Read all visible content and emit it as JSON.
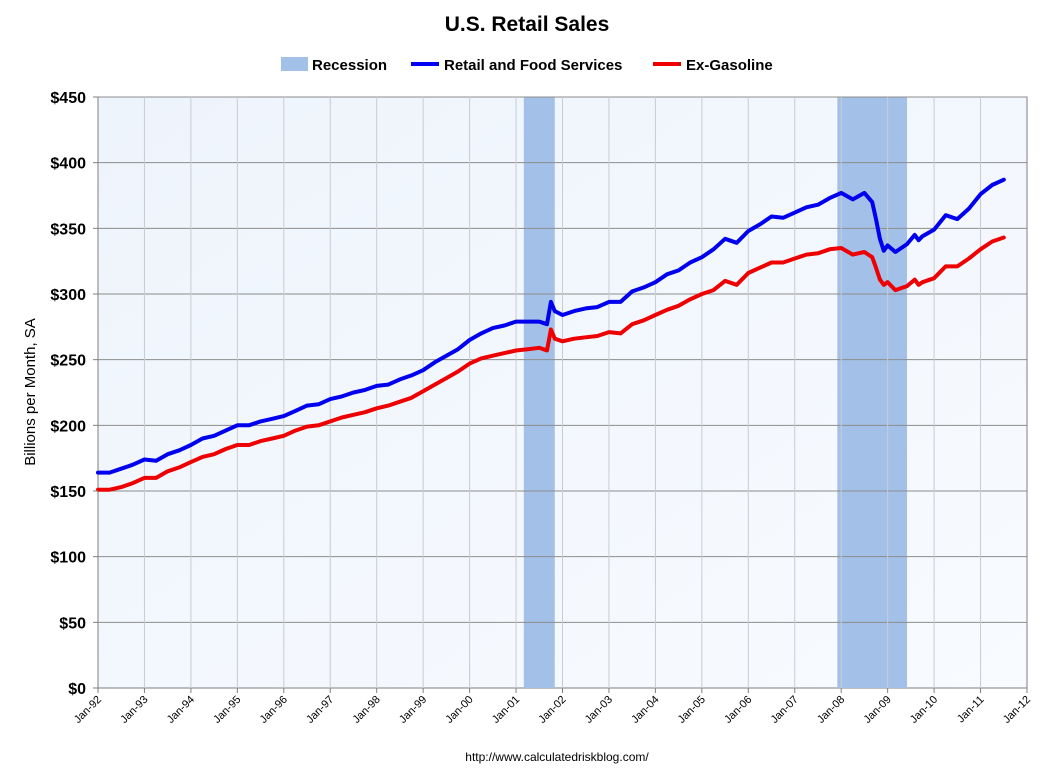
{
  "chart_data": {
    "type": "line",
    "title": "U.S. Retail Sales",
    "ylabel": "Billions per Month, SA",
    "source": "http://www.calculatedriskblog.com/",
    "ylim": [
      0,
      450
    ],
    "yticks": [
      0,
      50,
      100,
      150,
      200,
      250,
      300,
      350,
      400,
      450
    ],
    "ytick_labels": [
      "$0",
      "$50",
      "$100",
      "$150",
      "$200",
      "$250",
      "$300",
      "$350",
      "$400",
      "$450"
    ],
    "xlim": [
      1992,
      2012
    ],
    "xticks": [
      "Jan-92",
      "Jan-93",
      "Jan-94",
      "Jan-95",
      "Jan-96",
      "Jan-97",
      "Jan-98",
      "Jan-99",
      "Jan-00",
      "Jan-01",
      "Jan-02",
      "Jan-03",
      "Jan-04",
      "Jan-05",
      "Jan-06",
      "Jan-07",
      "Jan-08",
      "Jan-09",
      "Jan-10",
      "Jan-11",
      "Jan-12"
    ],
    "grid": true,
    "legend_position": "top",
    "recessions": [
      {
        "start": "Mar-01",
        "end": "Nov-01"
      },
      {
        "start": "Dec-07",
        "end": "Jun-09"
      }
    ],
    "recession_label": "Recession",
    "recession_color": "#a3c1e8",
    "series": [
      {
        "name": "Retail and Food Services",
        "color": "#0000ee",
        "points": [
          [
            "Jan-92",
            164
          ],
          [
            "Apr-92",
            164
          ],
          [
            "Jul-92",
            167
          ],
          [
            "Oct-92",
            170
          ],
          [
            "Jan-93",
            174
          ],
          [
            "Apr-93",
            173
          ],
          [
            "Jul-93",
            178
          ],
          [
            "Oct-93",
            181
          ],
          [
            "Jan-94",
            185
          ],
          [
            "Apr-94",
            190
          ],
          [
            "Jul-94",
            192
          ],
          [
            "Oct-94",
            196
          ],
          [
            "Jan-95",
            200
          ],
          [
            "Apr-95",
            200
          ],
          [
            "Jul-95",
            203
          ],
          [
            "Oct-95",
            205
          ],
          [
            "Jan-96",
            207
          ],
          [
            "Apr-96",
            211
          ],
          [
            "Jul-96",
            215
          ],
          [
            "Oct-96",
            216
          ],
          [
            "Jan-97",
            220
          ],
          [
            "Apr-97",
            222
          ],
          [
            "Jul-97",
            225
          ],
          [
            "Oct-97",
            227
          ],
          [
            "Jan-98",
            230
          ],
          [
            "Apr-98",
            231
          ],
          [
            "Jul-98",
            235
          ],
          [
            "Oct-98",
            238
          ],
          [
            "Jan-99",
            242
          ],
          [
            "Apr-99",
            248
          ],
          [
            "Jul-99",
            253
          ],
          [
            "Oct-99",
            258
          ],
          [
            "Jan-00",
            265
          ],
          [
            "Apr-00",
            270
          ],
          [
            "Jul-00",
            274
          ],
          [
            "Oct-00",
            276
          ],
          [
            "Jan-01",
            279
          ],
          [
            "Apr-01",
            279
          ],
          [
            "Jul-01",
            279
          ],
          [
            "Sep-01",
            277
          ],
          [
            "Oct-01",
            294
          ],
          [
            "Nov-01",
            287
          ],
          [
            "Jan-02",
            284
          ],
          [
            "Apr-02",
            287
          ],
          [
            "Jul-02",
            289
          ],
          [
            "Oct-02",
            290
          ],
          [
            "Jan-03",
            294
          ],
          [
            "Apr-03",
            294
          ],
          [
            "Jul-03",
            302
          ],
          [
            "Oct-03",
            305
          ],
          [
            "Jan-04",
            309
          ],
          [
            "Apr-04",
            315
          ],
          [
            "Jul-04",
            318
          ],
          [
            "Oct-04",
            324
          ],
          [
            "Jan-05",
            328
          ],
          [
            "Apr-05",
            334
          ],
          [
            "Jul-05",
            342
          ],
          [
            "Oct-05",
            339
          ],
          [
            "Jan-06",
            348
          ],
          [
            "Apr-06",
            353
          ],
          [
            "Jul-06",
            359
          ],
          [
            "Oct-06",
            358
          ],
          [
            "Jan-07",
            362
          ],
          [
            "Apr-07",
            366
          ],
          [
            "Jul-07",
            368
          ],
          [
            "Oct-07",
            373
          ],
          [
            "Jan-08",
            377
          ],
          [
            "Apr-08",
            372
          ],
          [
            "Jul-08",
            377
          ],
          [
            "Sep-08",
            370
          ],
          [
            "Oct-08",
            357
          ],
          [
            "Nov-08",
            342
          ],
          [
            "Dec-08",
            333
          ],
          [
            "Jan-09",
            337
          ],
          [
            "Mar-09",
            332
          ],
          [
            "Jun-09",
            338
          ],
          [
            "Aug-09",
            345
          ],
          [
            "Sep-09",
            341
          ],
          [
            "Oct-09",
            344
          ],
          [
            "Jan-10",
            349
          ],
          [
            "Apr-10",
            360
          ],
          [
            "Jul-10",
            357
          ],
          [
            "Oct-10",
            365
          ],
          [
            "Jan-11",
            376
          ],
          [
            "Apr-11",
            383
          ],
          [
            "Jul-11",
            387
          ]
        ]
      },
      {
        "name": "Ex-Gasoline",
        "color": "#ee0000",
        "points": [
          [
            "Jan-92",
            151
          ],
          [
            "Apr-92",
            151
          ],
          [
            "Jul-92",
            153
          ],
          [
            "Oct-92",
            156
          ],
          [
            "Jan-93",
            160
          ],
          [
            "Apr-93",
            160
          ],
          [
            "Jul-93",
            165
          ],
          [
            "Oct-93",
            168
          ],
          [
            "Jan-94",
            172
          ],
          [
            "Apr-94",
            176
          ],
          [
            "Jul-94",
            178
          ],
          [
            "Oct-94",
            182
          ],
          [
            "Jan-95",
            185
          ],
          [
            "Apr-95",
            185
          ],
          [
            "Jul-95",
            188
          ],
          [
            "Oct-95",
            190
          ],
          [
            "Jan-96",
            192
          ],
          [
            "Apr-96",
            196
          ],
          [
            "Jul-96",
            199
          ],
          [
            "Oct-96",
            200
          ],
          [
            "Jan-97",
            203
          ],
          [
            "Apr-97",
            206
          ],
          [
            "Jul-97",
            208
          ],
          [
            "Oct-97",
            210
          ],
          [
            "Jan-98",
            213
          ],
          [
            "Apr-98",
            215
          ],
          [
            "Jul-98",
            218
          ],
          [
            "Oct-98",
            221
          ],
          [
            "Jan-99",
            226
          ],
          [
            "Apr-99",
            231
          ],
          [
            "Jul-99",
            236
          ],
          [
            "Oct-99",
            241
          ],
          [
            "Jan-00",
            247
          ],
          [
            "Apr-00",
            251
          ],
          [
            "Jul-00",
            253
          ],
          [
            "Oct-00",
            255
          ],
          [
            "Jan-01",
            257
          ],
          [
            "Apr-01",
            258
          ],
          [
            "Jul-01",
            259
          ],
          [
            "Sep-01",
            257
          ],
          [
            "Oct-01",
            273
          ],
          [
            "Nov-01",
            266
          ],
          [
            "Jan-02",
            264
          ],
          [
            "Apr-02",
            266
          ],
          [
            "Jul-02",
            267
          ],
          [
            "Oct-02",
            268
          ],
          [
            "Jan-03",
            271
          ],
          [
            "Apr-03",
            270
          ],
          [
            "Jul-03",
            277
          ],
          [
            "Oct-03",
            280
          ],
          [
            "Jan-04",
            284
          ],
          [
            "Apr-04",
            288
          ],
          [
            "Jul-04",
            291
          ],
          [
            "Oct-04",
            296
          ],
          [
            "Jan-05",
            300
          ],
          [
            "Apr-05",
            303
          ],
          [
            "Jul-05",
            310
          ],
          [
            "Oct-05",
            307
          ],
          [
            "Jan-06",
            316
          ],
          [
            "Apr-06",
            320
          ],
          [
            "Jul-06",
            324
          ],
          [
            "Oct-06",
            324
          ],
          [
            "Jan-07",
            327
          ],
          [
            "Apr-07",
            330
          ],
          [
            "Jul-07",
            331
          ],
          [
            "Oct-07",
            334
          ],
          [
            "Jan-08",
            335
          ],
          [
            "Apr-08",
            330
          ],
          [
            "Jul-08",
            332
          ],
          [
            "Sep-08",
            328
          ],
          [
            "Oct-08",
            320
          ],
          [
            "Nov-08",
            311
          ],
          [
            "Dec-08",
            307
          ],
          [
            "Jan-09",
            309
          ],
          [
            "Mar-09",
            303
          ],
          [
            "Jun-09",
            306
          ],
          [
            "Aug-09",
            311
          ],
          [
            "Sep-09",
            307
          ],
          [
            "Oct-09",
            309
          ],
          [
            "Jan-10",
            312
          ],
          [
            "Apr-10",
            321
          ],
          [
            "Jul-10",
            321
          ],
          [
            "Oct-10",
            327
          ],
          [
            "Jan-11",
            334
          ],
          [
            "Apr-11",
            340
          ],
          [
            "Jul-11",
            343
          ]
        ]
      }
    ]
  }
}
